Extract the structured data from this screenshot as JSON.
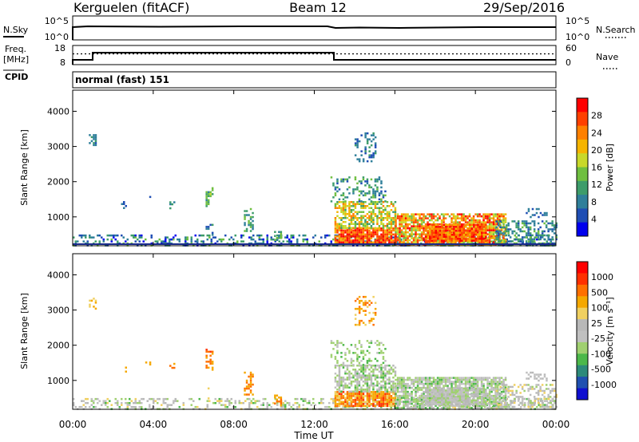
{
  "header": {
    "site": "Kerguelen (fitACF)",
    "beam": "Beam 12",
    "date": "29/Sep/2016"
  },
  "nsky_panel": {
    "left_label": "N.Sky",
    "left_ticks": [
      "10^5",
      "10^0"
    ],
    "right_ticks": [
      "10^5",
      "10^0"
    ],
    "right_label": "N.Search"
  },
  "freq_panel": {
    "left_label_1": "Freq.",
    "left_label_2": "[MHz]",
    "left_ticks": [
      "18",
      "8"
    ],
    "right_ticks": [
      "60",
      "0"
    ],
    "right_label": "Nave",
    "cpid_label": "CPID"
  },
  "cpid_text": "normal (fast) 151",
  "x_axis": {
    "label": "Time UT",
    "range_hours": [
      0,
      24
    ],
    "ticks": [
      {
        "h": 0,
        "label": "00:00"
      },
      {
        "h": 4,
        "label": "04:00"
      },
      {
        "h": 8,
        "label": "08:00"
      },
      {
        "h": 12,
        "label": "12:00"
      },
      {
        "h": 16,
        "label": "16:00"
      },
      {
        "h": 20,
        "label": "20:00"
      },
      {
        "h": 24,
        "label": "00:00"
      }
    ]
  },
  "chart_data": [
    {
      "type": "heatmap",
      "name": "power",
      "ylabel": "Slant Range [km]",
      "ylim": [
        180,
        4600
      ],
      "yticks": [
        {
          "v": 1000,
          "label": "1000"
        },
        {
          "v": 2000,
          "label": "2000"
        },
        {
          "v": 3000,
          "label": "3000"
        },
        {
          "v": 4000,
          "label": "4000"
        }
      ],
      "colorbar_label": "Power [dB]",
      "colorbar_ticks": [
        "28",
        "24",
        "20",
        "16",
        "12",
        "8",
        "4"
      ],
      "colors": [
        "#0000ee",
        "#1f4eb4",
        "#2f7f9a",
        "#3d9c6a",
        "#6fbf40",
        "#c8d82a",
        "#f5b400",
        "#ff8000",
        "#ff4000",
        "#ff0000"
      ]
    },
    {
      "type": "heatmap",
      "name": "velocity",
      "ylabel": "Slant Range [km]",
      "ylim": [
        180,
        4600
      ],
      "yticks": [
        {
          "v": 1000,
          "label": "1000"
        },
        {
          "v": 2000,
          "label": "2000"
        },
        {
          "v": 3000,
          "label": "3000"
        },
        {
          "v": 4000,
          "label": "4000"
        }
      ],
      "colorbar_label": "Velocity [m s⁻¹]",
      "colorbar_ticks": [
        "1000",
        "500",
        "100",
        "25",
        "-25",
        "-100",
        "-500",
        "-1000"
      ],
      "colors": [
        "#1010d0",
        "#2050b0",
        "#2d8a7a",
        "#4cb84a",
        "#a0d070",
        "#c0c0c0",
        "#b8b8b8",
        "#f0d060",
        "#f5a800",
        "#ff7000",
        "#ff3000",
        "#ff0000"
      ]
    }
  ],
  "echo_regions": [
    {
      "t0": 0.0,
      "t1": 24.0,
      "r0": 180,
      "r1": 500,
      "density": 0.35,
      "pv": [
        0,
        4
      ],
      "vv": [
        3,
        7
      ],
      "layer": "ground"
    },
    {
      "t0": 0.8,
      "t1": 1.1,
      "r0": 3050,
      "r1": 3350,
      "density": 0.45,
      "pv": [
        1,
        3
      ],
      "vv": [
        7,
        8
      ]
    },
    {
      "t0": 2.4,
      "t1": 2.6,
      "r0": 1250,
      "r1": 1450,
      "density": 0.3,
      "pv": [
        1,
        2
      ],
      "vv": [
        7,
        8
      ]
    },
    {
      "t0": 3.6,
      "t1": 3.8,
      "r0": 1450,
      "r1": 1650,
      "density": 0.35,
      "pv": [
        1,
        3
      ],
      "vv": [
        7,
        8
      ]
    },
    {
      "t0": 4.8,
      "t1": 5.0,
      "r0": 1250,
      "r1": 1500,
      "density": 0.4,
      "pv": [
        1,
        3
      ],
      "vv": [
        8,
        9
      ]
    },
    {
      "t0": 6.6,
      "t1": 6.9,
      "r0": 1300,
      "r1": 1900,
      "density": 0.45,
      "pv": [
        2,
        5
      ],
      "vv": [
        8,
        10
      ]
    },
    {
      "t0": 6.6,
      "t1": 6.9,
      "r0": 500,
      "r1": 800,
      "density": 0.3,
      "pv": [
        1,
        3
      ],
      "vv": [
        7,
        8
      ]
    },
    {
      "t0": 8.5,
      "t1": 8.9,
      "r0": 600,
      "r1": 1250,
      "density": 0.45,
      "pv": [
        2,
        4
      ],
      "vv": [
        8,
        9
      ]
    },
    {
      "t0": 10.0,
      "t1": 10.3,
      "r0": 300,
      "r1": 600,
      "density": 0.5,
      "pv": [
        2,
        4
      ],
      "vv": [
        8,
        9
      ]
    },
    {
      "t0": 13.0,
      "t1": 16.0,
      "r0": 300,
      "r1": 700,
      "density": 0.9,
      "pv": [
        6,
        9
      ],
      "vv": [
        7,
        10
      ]
    },
    {
      "t0": 13.0,
      "t1": 16.0,
      "r0": 700,
      "r1": 1450,
      "density": 0.6,
      "pv": [
        3,
        7
      ],
      "vv": [
        3,
        6
      ]
    },
    {
      "t0": 12.8,
      "t1": 15.5,
      "r0": 1450,
      "r1": 2150,
      "density": 0.25,
      "pv": [
        1,
        4
      ],
      "vv": [
        3,
        5
      ]
    },
    {
      "t0": 14.0,
      "t1": 15.0,
      "r0": 2600,
      "r1": 3400,
      "density": 0.3,
      "pv": [
        1,
        3
      ],
      "vv": [
        7,
        9
      ]
    },
    {
      "t0": 16.0,
      "t1": 21.5,
      "r0": 250,
      "r1": 1100,
      "density": 0.75,
      "pv": [
        4,
        9
      ],
      "vv": [
        3,
        6
      ]
    },
    {
      "t0": 17.5,
      "t1": 20.5,
      "r0": 300,
      "r1": 800,
      "density": 0.9,
      "pv": [
        6,
        9
      ],
      "vv": [
        4,
        6
      ]
    },
    {
      "t0": 21.0,
      "t1": 24.0,
      "r0": 200,
      "r1": 900,
      "density": 0.4,
      "pv": [
        1,
        4
      ],
      "vv": [
        4,
        7
      ]
    },
    {
      "t0": 22.5,
      "t1": 23.5,
      "r0": 1000,
      "r1": 1250,
      "density": 0.3,
      "pv": [
        1,
        3
      ],
      "vv": [
        5,
        6
      ]
    }
  ]
}
